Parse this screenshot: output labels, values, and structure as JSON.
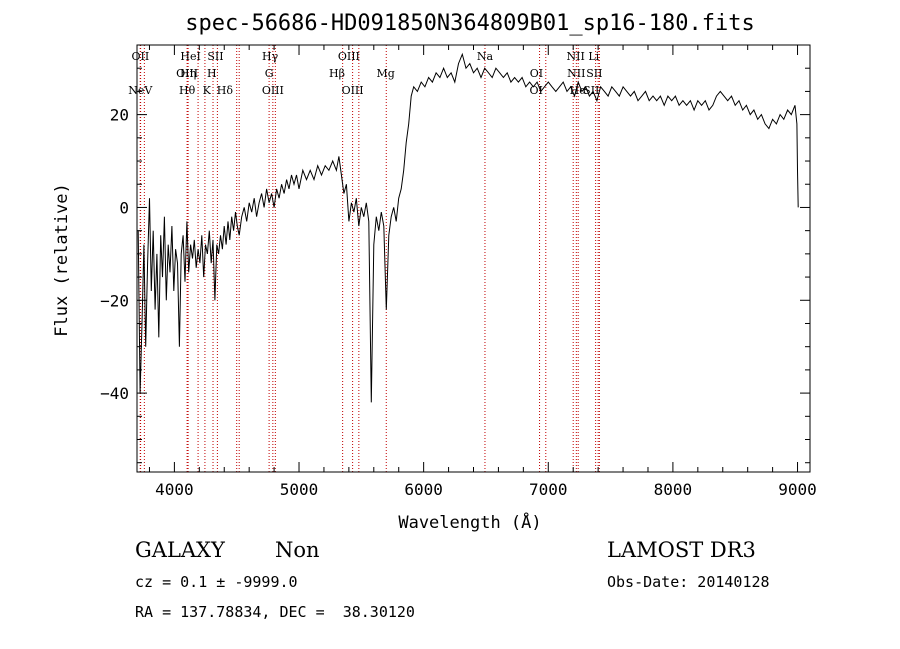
{
  "chart_data": {
    "type": "line",
    "title": "spec-56686-HD091850N364809B01_sp16-180.fits",
    "xlabel": "Wavelength (Å)",
    "ylabel": "Flux (relative)",
    "xlim": [
      3700,
      9100
    ],
    "ylim": [
      -57,
      35
    ],
    "xticks": [
      4000,
      5000,
      6000,
      7000,
      8000,
      9000
    ],
    "yticks": [
      -40,
      -20,
      0,
      20
    ],
    "grid": false,
    "legend": "none",
    "line_color": "#000000",
    "marker_color": "#c00000",
    "series_points": [
      [
        3710,
        -5
      ],
      [
        3725,
        -40
      ],
      [
        3740,
        -25
      ],
      [
        3755,
        -8
      ],
      [
        3770,
        -30
      ],
      [
        3785,
        -12
      ],
      [
        3800,
        2
      ],
      [
        3815,
        -18
      ],
      [
        3830,
        -5
      ],
      [
        3845,
        -22
      ],
      [
        3860,
        -10
      ],
      [
        3875,
        -28
      ],
      [
        3890,
        -6
      ],
      [
        3905,
        -15
      ],
      [
        3920,
        -2
      ],
      [
        3935,
        -20
      ],
      [
        3950,
        -8
      ],
      [
        3965,
        -14
      ],
      [
        3980,
        -4
      ],
      [
        3995,
        -18
      ],
      [
        4010,
        -9
      ],
      [
        4025,
        -12
      ],
      [
        4040,
        -30
      ],
      [
        4055,
        -10
      ],
      [
        4070,
        -6
      ],
      [
        4085,
        -16
      ],
      [
        4100,
        -3
      ],
      [
        4115,
        -14
      ],
      [
        4130,
        -8
      ],
      [
        4145,
        -11
      ],
      [
        4160,
        -7
      ],
      [
        4175,
        -13
      ],
      [
        4190,
        -9
      ],
      [
        4205,
        -12
      ],
      [
        4220,
        -6
      ],
      [
        4235,
        -15
      ],
      [
        4250,
        -8
      ],
      [
        4265,
        -10
      ],
      [
        4280,
        -5
      ],
      [
        4295,
        -12
      ],
      [
        4310,
        -7
      ],
      [
        4325,
        -20
      ],
      [
        4340,
        -8
      ],
      [
        4355,
        -10
      ],
      [
        4370,
        -6
      ],
      [
        4385,
        -9
      ],
      [
        4400,
        -4
      ],
      [
        4415,
        -8
      ],
      [
        4430,
        -3
      ],
      [
        4445,
        -7
      ],
      [
        4460,
        -2
      ],
      [
        4475,
        -5
      ],
      [
        4490,
        -1
      ],
      [
        4505,
        -4
      ],
      [
        4520,
        -6
      ],
      [
        4540,
        -2
      ],
      [
        4560,
        0
      ],
      [
        4580,
        -3
      ],
      [
        4600,
        1
      ],
      [
        4620,
        -1
      ],
      [
        4640,
        2
      ],
      [
        4660,
        -2
      ],
      [
        4680,
        1
      ],
      [
        4700,
        3
      ],
      [
        4720,
        0
      ],
      [
        4740,
        4
      ],
      [
        4760,
        1
      ],
      [
        4780,
        3
      ],
      [
        4800,
        0
      ],
      [
        4820,
        4
      ],
      [
        4840,
        2
      ],
      [
        4860,
        5
      ],
      [
        4880,
        3
      ],
      [
        4900,
        6
      ],
      [
        4920,
        4
      ],
      [
        4940,
        7
      ],
      [
        4960,
        5
      ],
      [
        4980,
        7
      ],
      [
        5000,
        4
      ],
      [
        5030,
        8
      ],
      [
        5060,
        6
      ],
      [
        5090,
        8
      ],
      [
        5120,
        6
      ],
      [
        5150,
        9
      ],
      [
        5180,
        7
      ],
      [
        5210,
        9
      ],
      [
        5240,
        8
      ],
      [
        5270,
        10
      ],
      [
        5300,
        8
      ],
      [
        5320,
        11
      ],
      [
        5340,
        7
      ],
      [
        5360,
        3
      ],
      [
        5380,
        5
      ],
      [
        5400,
        -3
      ],
      [
        5420,
        1
      ],
      [
        5440,
        -1
      ],
      [
        5460,
        2
      ],
      [
        5480,
        -4
      ],
      [
        5500,
        0
      ],
      [
        5520,
        -2
      ],
      [
        5540,
        1
      ],
      [
        5560,
        -3
      ],
      [
        5580,
        -42
      ],
      [
        5600,
        -8
      ],
      [
        5620,
        -2
      ],
      [
        5640,
        -5
      ],
      [
        5660,
        -1
      ],
      [
        5680,
        -4
      ],
      [
        5700,
        -22
      ],
      [
        5720,
        -6
      ],
      [
        5740,
        -2
      ],
      [
        5760,
        0
      ],
      [
        5780,
        -3
      ],
      [
        5800,
        2
      ],
      [
        5820,
        4
      ],
      [
        5840,
        8
      ],
      [
        5860,
        14
      ],
      [
        5880,
        18
      ],
      [
        5900,
        24
      ],
      [
        5920,
        26
      ],
      [
        5950,
        25
      ],
      [
        5980,
        27
      ],
      [
        6010,
        26
      ],
      [
        6040,
        28
      ],
      [
        6070,
        27
      ],
      [
        6100,
        29
      ],
      [
        6130,
        28
      ],
      [
        6160,
        30
      ],
      [
        6190,
        28
      ],
      [
        6220,
        29
      ],
      [
        6250,
        27
      ],
      [
        6280,
        31
      ],
      [
        6310,
        33
      ],
      [
        6340,
        30
      ],
      [
        6370,
        31
      ],
      [
        6400,
        29
      ],
      [
        6430,
        30
      ],
      [
        6460,
        28
      ],
      [
        6490,
        30
      ],
      [
        6520,
        29
      ],
      [
        6550,
        28
      ],
      [
        6580,
        30
      ],
      [
        6610,
        29
      ],
      [
        6640,
        28
      ],
      [
        6670,
        29
      ],
      [
        6700,
        27
      ],
      [
        6730,
        28
      ],
      [
        6760,
        27
      ],
      [
        6790,
        28
      ],
      [
        6820,
        26
      ],
      [
        6850,
        27
      ],
      [
        6880,
        26
      ],
      [
        6910,
        27
      ],
      [
        6940,
        25
      ],
      [
        6970,
        26
      ],
      [
        7000,
        27
      ],
      [
        7030,
        26
      ],
      [
        7060,
        25
      ],
      [
        7090,
        26
      ],
      [
        7120,
        27
      ],
      [
        7150,
        25
      ],
      [
        7180,
        26
      ],
      [
        7210,
        24
      ],
      [
        7240,
        27
      ],
      [
        7270,
        25
      ],
      [
        7300,
        26
      ],
      [
        7330,
        24
      ],
      [
        7360,
        25
      ],
      [
        7390,
        23
      ],
      [
        7420,
        26
      ],
      [
        7450,
        25
      ],
      [
        7480,
        24
      ],
      [
        7510,
        26
      ],
      [
        7540,
        25
      ],
      [
        7570,
        24
      ],
      [
        7600,
        26
      ],
      [
        7630,
        25
      ],
      [
        7660,
        24
      ],
      [
        7690,
        25
      ],
      [
        7720,
        23
      ],
      [
        7750,
        24
      ],
      [
        7780,
        25
      ],
      [
        7810,
        23
      ],
      [
        7840,
        24
      ],
      [
        7870,
        23
      ],
      [
        7900,
        24
      ],
      [
        7930,
        22
      ],
      [
        7960,
        24
      ],
      [
        7990,
        23
      ],
      [
        8020,
        24
      ],
      [
        8050,
        22
      ],
      [
        8080,
        23
      ],
      [
        8110,
        22
      ],
      [
        8140,
        23
      ],
      [
        8170,
        21
      ],
      [
        8200,
        23
      ],
      [
        8230,
        22
      ],
      [
        8260,
        23
      ],
      [
        8290,
        21
      ],
      [
        8320,
        22
      ],
      [
        8350,
        24
      ],
      [
        8380,
        25
      ],
      [
        8410,
        24
      ],
      [
        8440,
        23
      ],
      [
        8470,
        24
      ],
      [
        8500,
        22
      ],
      [
        8530,
        23
      ],
      [
        8560,
        21
      ],
      [
        8590,
        22
      ],
      [
        8620,
        20
      ],
      [
        8650,
        21
      ],
      [
        8680,
        19
      ],
      [
        8710,
        20
      ],
      [
        8740,
        18
      ],
      [
        8770,
        17
      ],
      [
        8800,
        19
      ],
      [
        8830,
        18
      ],
      [
        8860,
        20
      ],
      [
        8890,
        19
      ],
      [
        8920,
        21
      ],
      [
        8950,
        20
      ],
      [
        8980,
        22
      ],
      [
        8995,
        18
      ],
      [
        9000,
        8
      ],
      [
        9005,
        0
      ]
    ],
    "lines": [
      {
        "label": "NeV",
        "wavelength": 3726,
        "row": 3
      },
      {
        "label": "OII",
        "wavelength": 3727,
        "row": 1
      },
      {
        "label": "OIII",
        "wavelength": 4102,
        "row": 2
      },
      {
        "label": "Hθ",
        "wavelength": 4102,
        "row": 3
      },
      {
        "label": "Hη",
        "wavelength": 4110,
        "row": 2
      },
      {
        "label": "HeI",
        "wavelength": 4130,
        "row": 1
      },
      {
        "label": "K",
        "wavelength": 4260,
        "row": 3
      },
      {
        "label": "H",
        "wavelength": 4300,
        "row": 2
      },
      {
        "label": "SII",
        "wavelength": 4330,
        "row": 1
      },
      {
        "label": "Hδ",
        "wavelength": 4405,
        "row": 3
      },
      {
        "label": "Hγ",
        "wavelength": 4768,
        "row": 1
      },
      {
        "label": "G",
        "wavelength": 4760,
        "row": 2
      },
      {
        "label": "OIII",
        "wavelength": 4790,
        "row": 3
      },
      {
        "label": "OIII",
        "wavelength": 5400,
        "row": 1
      },
      {
        "label": "Hβ",
        "wavelength": 5305,
        "row": 2
      },
      {
        "label": "OIII",
        "wavelength": 5430,
        "row": 3
      },
      {
        "label": "Mg",
        "wavelength": 5695,
        "row": 2
      },
      {
        "label": "Na",
        "wavelength": 6492,
        "row": 1
      },
      {
        "label": "OI",
        "wavelength": 6905,
        "row": 2
      },
      {
        "label": "OI",
        "wavelength": 6903,
        "row": 3
      },
      {
        "label": "NII",
        "wavelength": 7220,
        "row": 1
      },
      {
        "label": "Li",
        "wavelength": 7365,
        "row": 1
      },
      {
        "label": "NII",
        "wavelength": 7225,
        "row": 2
      },
      {
        "label": "SII",
        "wavelength": 7370,
        "row": 2
      },
      {
        "label": "Hα",
        "wavelength": 7240,
        "row": 3
      },
      {
        "label": "SII",
        "wavelength": 7345,
        "row": 3
      }
    ],
    "marker_wavelengths": [
      3726,
      3729,
      3759,
      4102,
      4110,
      4190,
      4245,
      4310,
      4345,
      4500,
      4520,
      4760,
      4790,
      4810,
      5350,
      5430,
      5480,
      5700,
      6492,
      6930,
      6980,
      7200,
      7225,
      7240,
      7380,
      7400,
      7410
    ]
  },
  "footer": {
    "class_name": "GALAXY",
    "subclass": "Non",
    "cz_line": "cz = 0.1 ± -9999.0",
    "radec_line": "RA = 137.78834, DEC =  38.30120",
    "survey": "LAMOST DR3",
    "obs_date": "Obs-Date: 20140128"
  }
}
